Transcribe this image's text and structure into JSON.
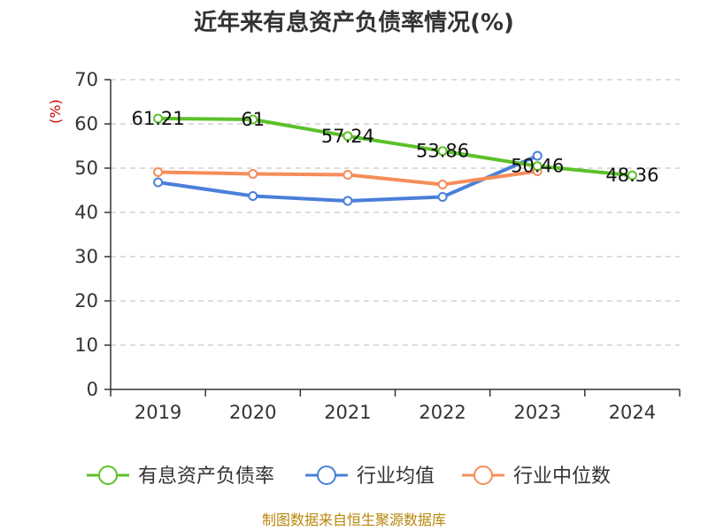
{
  "chart_data": {
    "type": "line",
    "title": "近年来有息资产负债率情况(%)",
    "ylabel": "(%)",
    "categories": [
      "2019",
      "2020",
      "2021",
      "2022",
      "2023",
      "2024"
    ],
    "ylim": [
      0,
      70
    ],
    "yticks": [
      "0",
      "10",
      "20",
      "30",
      "40",
      "50",
      "60",
      "70"
    ],
    "grid": true,
    "legend_position": "bottom",
    "series": [
      {
        "name": "有息资产负债率",
        "color": "#5cc12a",
        "values": [
          61.21,
          61,
          57.24,
          53.86,
          50.46,
          48.36
        ],
        "labels": [
          "61.21",
          "61",
          "57.24",
          "53.86",
          "50.46",
          "48.36"
        ]
      },
      {
        "name": "行业均值",
        "color": "#4a7fd9",
        "values": [
          46.8,
          43.7,
          42.6,
          43.5,
          52.8,
          null
        ]
      },
      {
        "name": "行业中位数",
        "color": "#f58d5a",
        "values": [
          49.1,
          48.7,
          48.5,
          46.3,
          49.3,
          null
        ]
      }
    ]
  },
  "source": "制图数据来自恒生聚源数据库"
}
